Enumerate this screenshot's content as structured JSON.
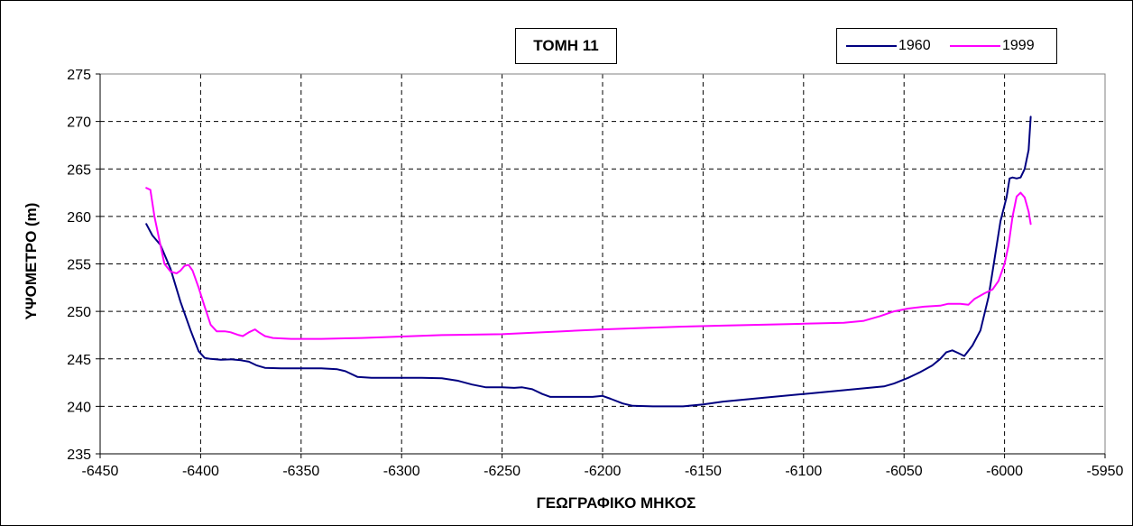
{
  "chart_data": {
    "type": "line",
    "title": "ΤΟΜΗ 11",
    "xlabel": "ΓΕΩΓΡΑΦΙΚΟ ΜΗΚΟΣ",
    "ylabel": "ΥΨΟΜΕΤΡΟ (m)",
    "xlim": [
      -6450,
      -5950
    ],
    "ylim": [
      235,
      275
    ],
    "xticks": [
      -6450,
      -6400,
      -6350,
      -6300,
      -6250,
      -6200,
      -6150,
      -6100,
      -6050,
      -6000,
      -5950
    ],
    "yticks": [
      235,
      240,
      245,
      250,
      255,
      260,
      265,
      270,
      275
    ],
    "grid": true,
    "legend_position": "top-right",
    "series": [
      {
        "name": "1960",
        "color": "#000080",
        "points": [
          [
            -6427,
            259.2
          ],
          [
            -6424,
            258
          ],
          [
            -6420,
            257
          ],
          [
            -6415,
            254.5
          ],
          [
            -6410,
            251
          ],
          [
            -6405,
            248
          ],
          [
            -6401,
            245.8
          ],
          [
            -6398,
            245.1
          ],
          [
            -6395,
            245
          ],
          [
            -6390,
            244.9
          ],
          [
            -6385,
            244.95
          ],
          [
            -6380,
            244.85
          ],
          [
            -6376,
            244.7
          ],
          [
            -6372,
            244.3
          ],
          [
            -6368,
            244.05
          ],
          [
            -6360,
            244
          ],
          [
            -6350,
            244
          ],
          [
            -6340,
            244
          ],
          [
            -6332,
            243.9
          ],
          [
            -6328,
            243.7
          ],
          [
            -6322,
            243.1
          ],
          [
            -6315,
            243
          ],
          [
            -6300,
            243
          ],
          [
            -6290,
            243
          ],
          [
            -6280,
            242.95
          ],
          [
            -6272,
            242.7
          ],
          [
            -6265,
            242.3
          ],
          [
            -6258,
            242
          ],
          [
            -6250,
            242
          ],
          [
            -6244,
            241.95
          ],
          [
            -6240,
            242
          ],
          [
            -6235,
            241.8
          ],
          [
            -6230,
            241.3
          ],
          [
            -6226,
            241
          ],
          [
            -6220,
            241
          ],
          [
            -6205,
            241
          ],
          [
            -6200,
            241.1
          ],
          [
            -6196,
            240.8
          ],
          [
            -6190,
            240.3
          ],
          [
            -6185,
            240.05
          ],
          [
            -6175,
            240
          ],
          [
            -6160,
            240
          ],
          [
            -6150,
            240.2
          ],
          [
            -6140,
            240.5
          ],
          [
            -6120,
            240.9
          ],
          [
            -6100,
            241.3
          ],
          [
            -6080,
            241.7
          ],
          [
            -6070,
            241.9
          ],
          [
            -6060,
            242.1
          ],
          [
            -6055,
            242.4
          ],
          [
            -6048,
            243
          ],
          [
            -6042,
            243.6
          ],
          [
            -6036,
            244.3
          ],
          [
            -6032,
            245
          ],
          [
            -6029,
            245.7
          ],
          [
            -6026,
            245.9
          ],
          [
            -6023,
            245.6
          ],
          [
            -6020,
            245.3
          ],
          [
            -6016,
            246.4
          ],
          [
            -6012,
            248
          ],
          [
            -6008,
            251.5
          ],
          [
            -6005,
            255.5
          ],
          [
            -6002,
            259.5
          ],
          [
            -5999,
            262
          ],
          [
            -5997.5,
            264
          ],
          [
            -5996,
            264.1
          ],
          [
            -5994,
            264
          ],
          [
            -5992,
            264.1
          ],
          [
            -5990,
            265
          ],
          [
            -5988,
            267
          ],
          [
            -5987,
            270.5
          ]
        ]
      },
      {
        "name": "1999",
        "color": "#ff00ff",
        "points": [
          [
            -6427,
            263
          ],
          [
            -6425,
            262.8
          ],
          [
            -6423,
            260
          ],
          [
            -6420,
            257
          ],
          [
            -6418,
            255
          ],
          [
            -6415,
            254.2
          ],
          [
            -6412,
            254
          ],
          [
            -6410,
            254.3
          ],
          [
            -6408,
            254.8
          ],
          [
            -6406,
            254.9
          ],
          [
            -6404,
            254.3
          ],
          [
            -6401,
            252.5
          ],
          [
            -6398,
            250.5
          ],
          [
            -6395,
            248.6
          ],
          [
            -6392,
            247.9
          ],
          [
            -6388,
            247.9
          ],
          [
            -6385,
            247.8
          ],
          [
            -6381,
            247.5
          ],
          [
            -6379,
            247.4
          ],
          [
            -6376,
            247.8
          ],
          [
            -6373,
            248.1
          ],
          [
            -6371,
            247.8
          ],
          [
            -6368,
            247.4
          ],
          [
            -6364,
            247.2
          ],
          [
            -6355,
            247.1
          ],
          [
            -6340,
            247.1
          ],
          [
            -6320,
            247.2
          ],
          [
            -6300,
            247.35
          ],
          [
            -6280,
            247.5
          ],
          [
            -6250,
            247.6
          ],
          [
            -6220,
            247.9
          ],
          [
            -6200,
            248.1
          ],
          [
            -6180,
            248.25
          ],
          [
            -6160,
            248.4
          ],
          [
            -6140,
            248.5
          ],
          [
            -6120,
            248.6
          ],
          [
            -6100,
            248.7
          ],
          [
            -6080,
            248.8
          ],
          [
            -6070,
            249
          ],
          [
            -6062,
            249.5
          ],
          [
            -6055,
            250
          ],
          [
            -6048,
            250.3
          ],
          [
            -6040,
            250.5
          ],
          [
            -6032,
            250.6
          ],
          [
            -6028,
            250.8
          ],
          [
            -6022,
            250.8
          ],
          [
            -6018,
            250.7
          ],
          [
            -6015,
            251.3
          ],
          [
            -6010,
            251.9
          ],
          [
            -6006,
            252.3
          ],
          [
            -6003,
            253.2
          ],
          [
            -6000,
            255
          ],
          [
            -5998,
            257
          ],
          [
            -5996,
            260
          ],
          [
            -5994,
            262.1
          ],
          [
            -5992,
            262.5
          ],
          [
            -5990,
            262
          ],
          [
            -5988,
            260.5
          ],
          [
            -5987,
            259.2
          ]
        ]
      }
    ]
  }
}
